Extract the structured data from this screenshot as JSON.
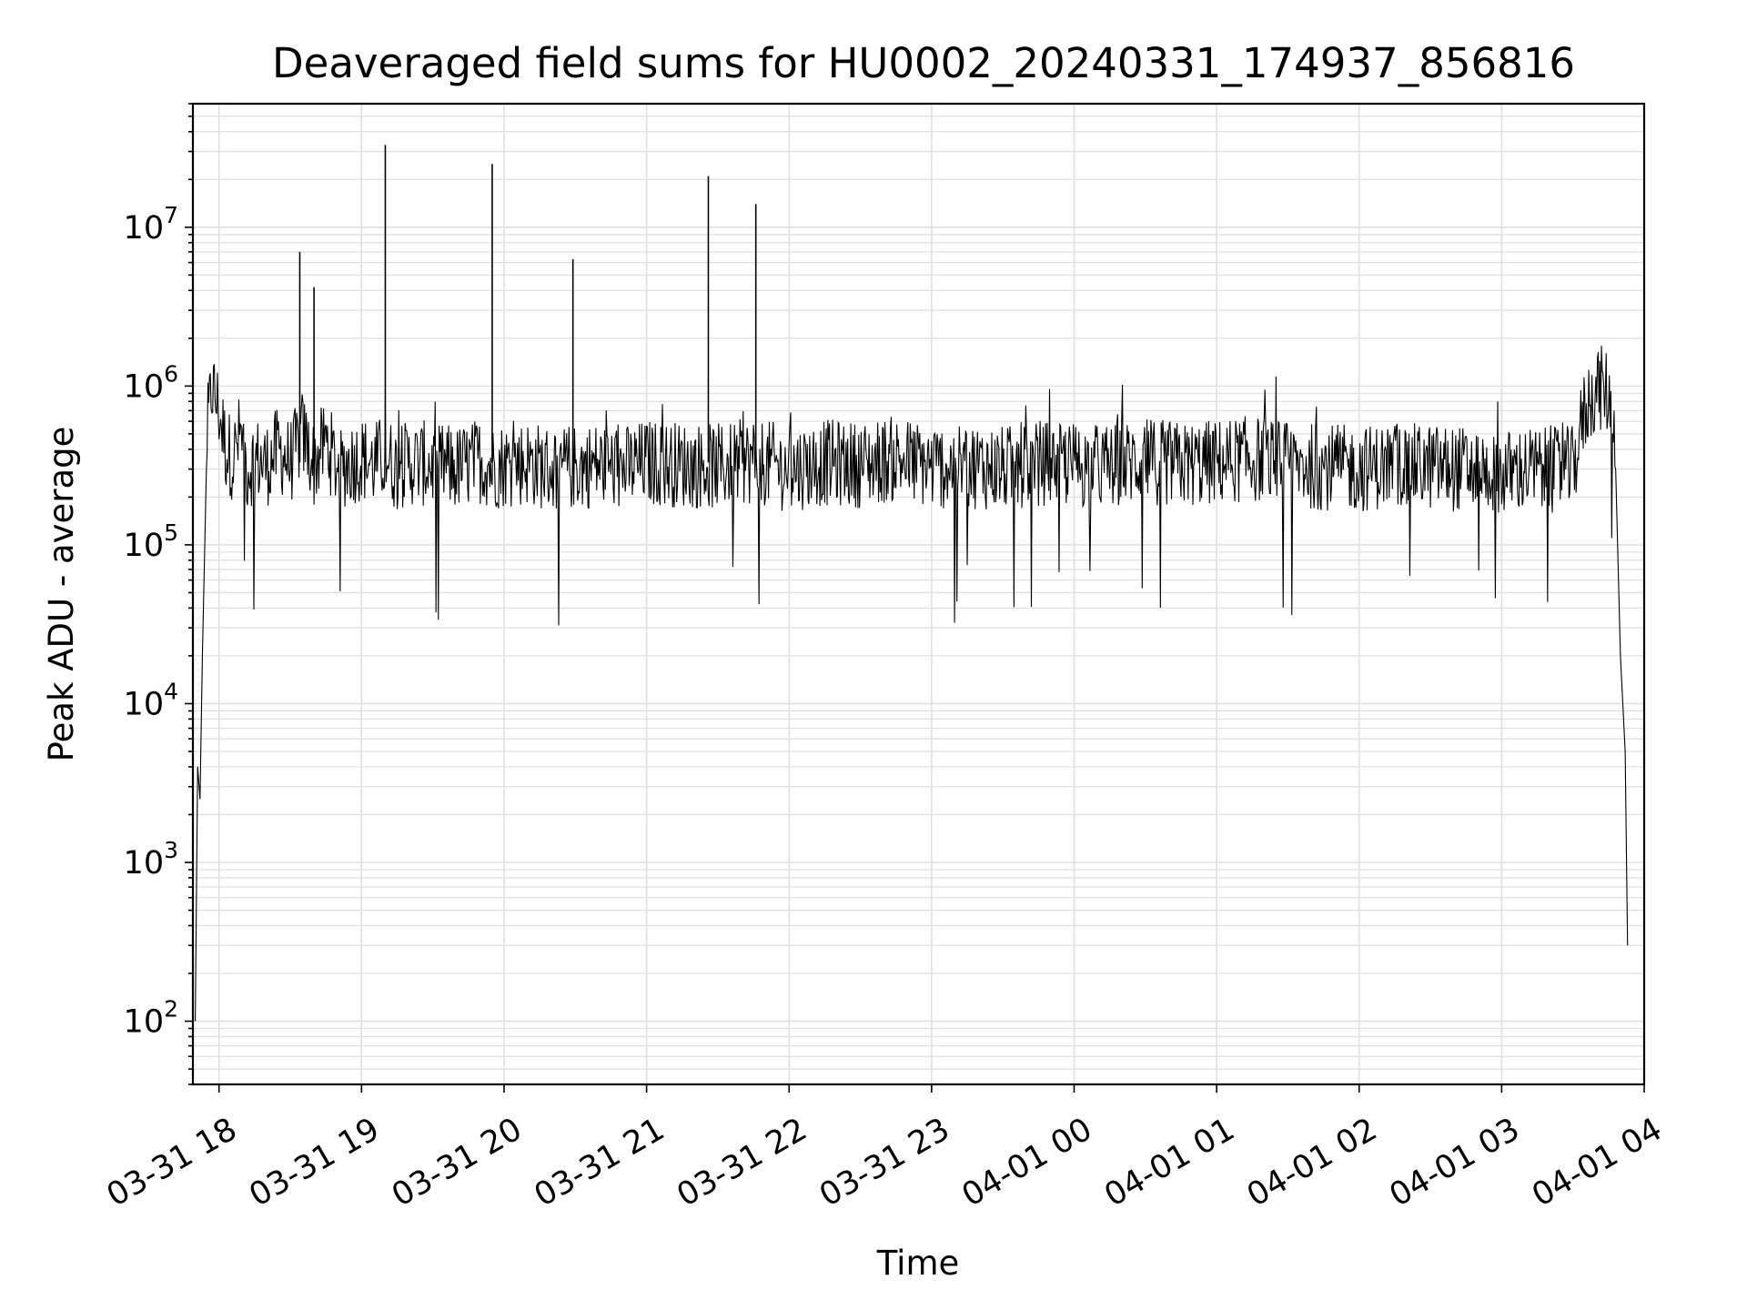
{
  "chart_data": {
    "type": "line",
    "title": "Deaveraged field sums for HU0002_20240331_174937_856816",
    "xlabel": "Time",
    "ylabel": "Peak ADU - average",
    "xlim": [
      "2024-03-31 17:49",
      "2024-04-01 04:00"
    ],
    "ylim": [
      40,
      60000000
    ],
    "yscale": "log",
    "grid": true,
    "grid_minor": true,
    "line_color": "#000000",
    "grid_color": "#e0e0e0",
    "x_ticks": [
      "03-31 18",
      "03-31 19",
      "03-31 20",
      "03-31 21",
      "03-31 22",
      "03-31 23",
      "04-01 00",
      "04-01 01",
      "04-01 02",
      "04-01 03",
      "04-01 04"
    ],
    "y_ticks": [
      {
        "value": 100,
        "base": "10",
        "exp": "2"
      },
      {
        "value": 1000,
        "base": "10",
        "exp": "3"
      },
      {
        "value": 10000,
        "base": "10",
        "exp": "4"
      },
      {
        "value": 100000,
        "base": "10",
        "exp": "5"
      },
      {
        "value": 1000000,
        "base": "10",
        "exp": "6"
      },
      {
        "value": 10000000,
        "base": "10",
        "exp": "7"
      }
    ],
    "series": [
      {
        "x": [
          "2024-03-31 17:50",
          "2024-03-31 17:51",
          "2024-03-31 17:52",
          "2024-03-31 17:53",
          "2024-03-31 17:55",
          "2024-03-31 17:57",
          "2024-03-31 18:00",
          "2024-03-31 18:03",
          "2024-03-31 18:06",
          "2024-03-31 18:09",
          "2024-03-31 18:12",
          "2024-03-31 18:15",
          "2024-03-31 18:20",
          "2024-03-31 18:25",
          "2024-03-31 18:30",
          "2024-03-31 18:35",
          "2024-03-31 18:40",
          "2024-03-31 18:45",
          "2024-03-31 18:50",
          "2024-03-31 18:55",
          "2024-03-31 19:00",
          "2024-03-31 19:05",
          "2024-03-31 19:10",
          "2024-03-31 19:15",
          "2024-03-31 19:20",
          "2024-03-31 19:30",
          "2024-03-31 19:40",
          "2024-03-31 19:50",
          "2024-03-31 19:55",
          "2024-03-31 20:00",
          "2024-03-31 20:10",
          "2024-03-31 20:20",
          "2024-03-31 20:30",
          "2024-03-31 20:40",
          "2024-03-31 20:50",
          "2024-03-31 21:00",
          "2024-03-31 21:15",
          "2024-03-31 21:30",
          "2024-03-31 21:45",
          "2024-03-31 22:00",
          "2024-03-31 22:15",
          "2024-03-31 22:30",
          "2024-03-31 22:45",
          "2024-03-31 23:00",
          "2024-03-31 23:15",
          "2024-03-31 23:30",
          "2024-03-31 23:45",
          "2024-04-01 00:00",
          "2024-04-01 00:15",
          "2024-04-01 00:30",
          "2024-04-01 00:45",
          "2024-04-01 01:00",
          "2024-04-01 01:15",
          "2024-04-01 01:30",
          "2024-04-01 01:45",
          "2024-04-01 02:00",
          "2024-04-01 02:15",
          "2024-04-01 02:30",
          "2024-04-01 02:45",
          "2024-04-01 03:00",
          "2024-04-01 03:10",
          "2024-04-01 03:20",
          "2024-04-01 03:30",
          "2024-04-01 03:35",
          "2024-04-01 03:40",
          "2024-04-01 03:45",
          "2024-04-01 03:48",
          "2024-04-01 03:50",
          "2024-04-01 03:52",
          "2024-04-01 03:53"
        ],
        "y": [
          100,
          4000,
          2500,
          20000,
          500000,
          1000000,
          700000,
          400000,
          350000,
          500000,
          300000,
          350000,
          320000,
          400000,
          330000,
          500000,
          320000,
          450000,
          300000,
          330000,
          350000,
          320000,
          360000,
          300000,
          330000,
          320000,
          300000,
          340000,
          310000,
          320000,
          330000,
          300000,
          310000,
          320000,
          300000,
          330000,
          320000,
          310000,
          340000,
          300000,
          330000,
          320000,
          350000,
          310000,
          320000,
          300000,
          330000,
          320000,
          310000,
          340000,
          320000,
          330000,
          350000,
          320000,
          310000,
          300000,
          320000,
          310000,
          300000,
          280000,
          300000,
          290000,
          300000,
          700000,
          1000000,
          900000,
          300000,
          20000,
          5000,
          300
        ]
      }
    ],
    "spikes": [
      {
        "x": "2024-03-31 18:34",
        "y": 7000000
      },
      {
        "x": "2024-03-31 18:40",
        "y": 4200000
      },
      {
        "x": "2024-03-31 19:10",
        "y": 33000000
      },
      {
        "x": "2024-03-31 19:55",
        "y": 25000000
      },
      {
        "x": "2024-03-31 20:29",
        "y": 6300000
      },
      {
        "x": "2024-03-31 21:26",
        "y": 21000000
      },
      {
        "x": "2024-03-31 21:46",
        "y": 14000000
      }
    ]
  }
}
